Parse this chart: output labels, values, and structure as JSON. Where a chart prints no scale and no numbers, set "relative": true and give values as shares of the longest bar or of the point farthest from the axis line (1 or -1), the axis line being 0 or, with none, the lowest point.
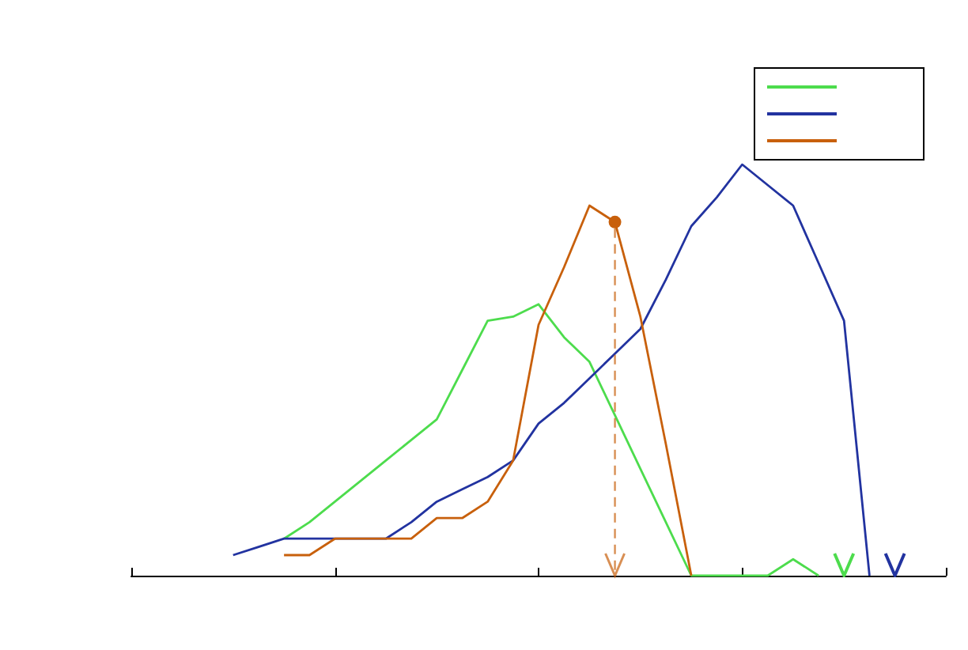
{
  "chart_data": {
    "type": "line",
    "relative": true,
    "grid": false,
    "categories": [
      null,
      null,
      null,
      null,
      null,
      null,
      null,
      null,
      null,
      null,
      null,
      null,
      null,
      null,
      null,
      null,
      null,
      null,
      null,
      null,
      null,
      null,
      null,
      null,
      null,
      null,
      null,
      null,
      null,
      null,
      null,
      null,
      null
    ],
    "series": [
      {
        "color": "#4ddc4d",
        "values": [
          null,
          null,
          null,
          null,
          null,
          null,
          0.09,
          0.13,
          0.18,
          0.23,
          0.28,
          0.33,
          0.38,
          0.5,
          0.62,
          0.63,
          0.66,
          0.58,
          0.52,
          0.39,
          0.26,
          0.13,
          0,
          0,
          0,
          0,
          0.04,
          0,
          null,
          null,
          null,
          null,
          null
        ]
      },
      {
        "color": "#2233a0",
        "values": [
          null,
          null,
          null,
          null,
          0.05,
          0.07,
          0.09,
          0.09,
          0.09,
          0.09,
          0.09,
          0.13,
          0.18,
          0.21,
          0.24,
          0.28,
          0.37,
          0.42,
          0.48,
          0.54,
          0.6,
          0.72,
          0.85,
          0.92,
          1,
          0.95,
          0.9,
          0.76,
          0.62,
          0,
          null,
          null,
          null
        ]
      },
      {
        "color": "#c8600c",
        "values": [
          null,
          null,
          null,
          null,
          null,
          null,
          0.05,
          0.05,
          0.09,
          0.09,
          0.09,
          0.09,
          0.14,
          0.14,
          0.18,
          0.28,
          0.61,
          0.75,
          0.9,
          0.86,
          0.63,
          0.32,
          0,
          null,
          null,
          null,
          null,
          null,
          null,
          null,
          null,
          null,
          null
        ]
      }
    ]
  }
}
